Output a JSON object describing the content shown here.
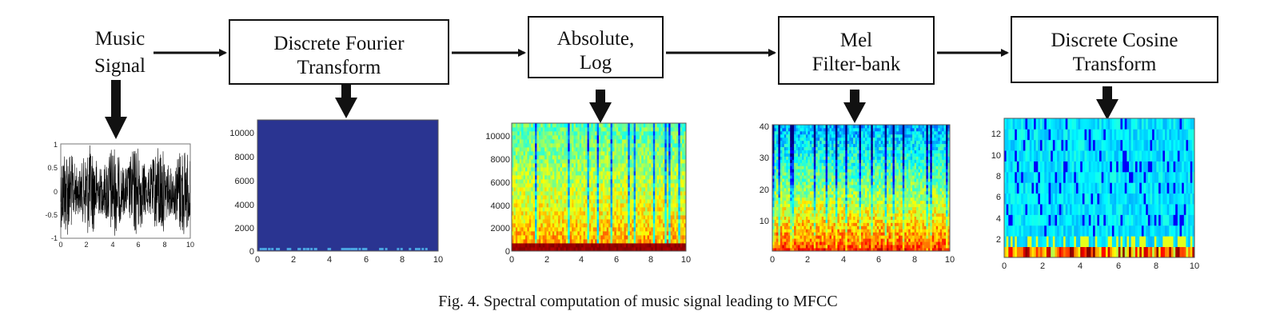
{
  "blocks": {
    "music_signal": {
      "line1": "Music",
      "line2": "Signal"
    },
    "dft": {
      "line1": "Discrete Fourier",
      "line2": "Transform"
    },
    "abs_log": {
      "line1": "Absolute,",
      "line2": "Log"
    },
    "mel": {
      "line1": "Mel",
      "line2": "Filter-bank"
    },
    "dct": {
      "line1": "Discrete Cosine",
      "line2": "Transform"
    }
  },
  "plots": {
    "waveform": {
      "y_ticks": [
        "1",
        "0.5",
        "0",
        "-0.5",
        "-1"
      ],
      "x_ticks": [
        "0",
        "2",
        "4",
        "6",
        "8",
        "10"
      ],
      "line_color": "#000000"
    },
    "dft": {
      "y_ticks": [
        "10000",
        "8000",
        "6000",
        "4000",
        "2000",
        "0"
      ],
      "x_ticks": [
        "0",
        "2",
        "4",
        "6",
        "8",
        "10"
      ],
      "fill": "#2a3491"
    },
    "log": {
      "y_ticks": [
        "10000",
        "8000",
        "6000",
        "4000",
        "2000",
        "0"
      ],
      "x_ticks": [
        "0",
        "2",
        "4",
        "6",
        "8",
        "10"
      ]
    },
    "mel": {
      "y_ticks": [
        "40",
        "30",
        "20",
        "10"
      ],
      "x_ticks": [
        "0",
        "2",
        "4",
        "6",
        "8",
        "10"
      ]
    },
    "dct": {
      "y_ticks": [
        "12",
        "10",
        "8",
        "6",
        "4",
        "2"
      ],
      "x_ticks": [
        "0",
        "2",
        "4",
        "6",
        "8",
        "10"
      ]
    }
  },
  "caption": "Fig. 4. Spectral computation of music signal leading to MFCC"
}
